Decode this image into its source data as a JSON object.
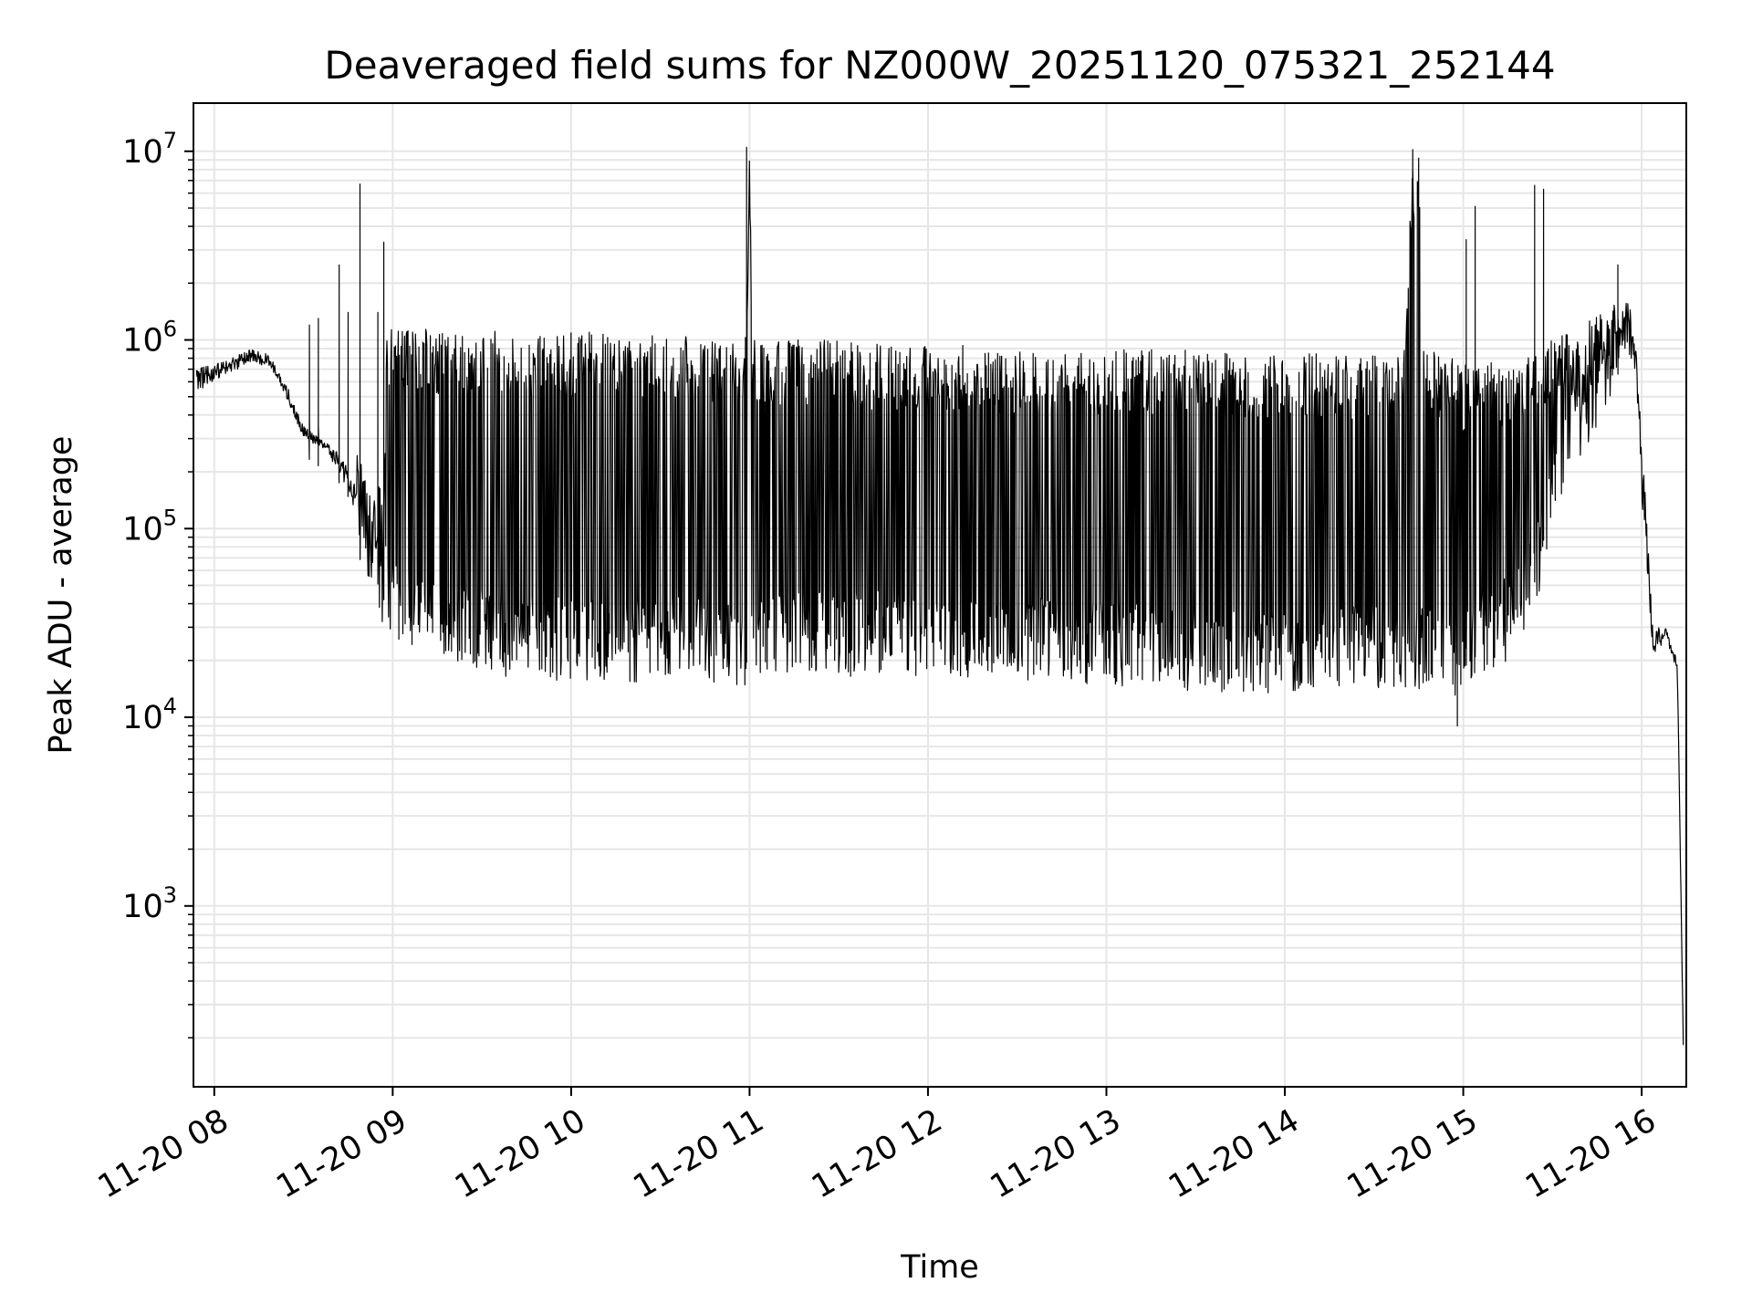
{
  "chart_data": {
    "type": "line",
    "title": "Deaveraged field sums for NZ000W_20251120_075321_252144",
    "xlabel": "Time",
    "ylabel": "Peak ADU - average",
    "yscale": "log",
    "xlim": [
      "2025-11-20T07:53:00",
      "2025-11-20T16:15:00"
    ],
    "ylim": [
      110,
      18000000
    ],
    "grid": true,
    "line_color": "#000000",
    "grid_color": "#e6e6e6",
    "x_ticks": [
      {
        "value": "2025-11-20T08:00:00",
        "label": "11-20 08"
      },
      {
        "value": "2025-11-20T09:00:00",
        "label": "11-20 09"
      },
      {
        "value": "2025-11-20T10:00:00",
        "label": "11-20 10"
      },
      {
        "value": "2025-11-20T11:00:00",
        "label": "11-20 11"
      },
      {
        "value": "2025-11-20T12:00:00",
        "label": "11-20 12"
      },
      {
        "value": "2025-11-20T13:00:00",
        "label": "11-20 13"
      },
      {
        "value": "2025-11-20T14:00:00",
        "label": "11-20 14"
      },
      {
        "value": "2025-11-20T15:00:00",
        "label": "11-20 15"
      },
      {
        "value": "2025-11-20T16:00:00",
        "label": "11-20 16"
      }
    ],
    "y_ticks": [
      {
        "value": 1000,
        "base": "10",
        "exp": "3"
      },
      {
        "value": 10000,
        "base": "10",
        "exp": "4"
      },
      {
        "value": 100000,
        "base": "10",
        "exp": "5"
      },
      {
        "value": 1000000,
        "base": "10",
        "exp": "6"
      },
      {
        "value": 10000000,
        "base": "10",
        "exp": "7"
      }
    ],
    "series": [
      {
        "x": [
          "2025-11-20T07:54:00",
          "2025-11-20T08:00:00",
          "2025-11-20T08:06:00",
          "2025-11-20T08:12:00",
          "2025-11-20T08:18:00",
          "2025-11-20T08:24:00",
          "2025-11-20T08:30:00",
          "2025-11-20T08:36:00",
          "2025-11-20T08:42:00",
          "2025-11-20T08:46:00",
          "2025-11-20T08:48:00",
          "2025-11-20T08:50:00",
          "2025-11-20T08:54:00",
          "2025-11-20T08:57:00",
          "2025-11-20T08:58:00",
          "2025-11-20T09:00:00",
          "2025-11-20T09:10:00",
          "2025-11-20T09:20:00",
          "2025-11-20T09:30:00",
          "2025-11-20T09:40:00",
          "2025-11-20T09:50:00",
          "2025-11-20T10:00:00",
          "2025-11-20T10:10:00",
          "2025-11-20T10:20:00",
          "2025-11-20T10:30:00",
          "2025-11-20T10:40:00",
          "2025-11-20T10:50:00",
          "2025-11-20T10:59:00",
          "2025-11-20T11:00:00",
          "2025-11-20T11:01:00",
          "2025-11-20T11:10:00",
          "2025-11-20T11:20:00",
          "2025-11-20T11:30:00",
          "2025-11-20T11:40:00",
          "2025-11-20T11:50:00",
          "2025-11-20T12:00:00",
          "2025-11-20T12:15:00",
          "2025-11-20T12:30:00",
          "2025-11-20T12:45:00",
          "2025-11-20T13:00:00",
          "2025-11-20T13:15:00",
          "2025-11-20T13:30:00",
          "2025-11-20T13:45:00",
          "2025-11-20T14:00:00",
          "2025-11-20T14:15:00",
          "2025-11-20T14:30:00",
          "2025-11-20T14:40:00",
          "2025-11-20T14:43:00",
          "2025-11-20T14:45:00",
          "2025-11-20T14:47:00",
          "2025-11-20T14:50:00",
          "2025-11-20T14:57:00",
          "2025-11-20T15:00:00",
          "2025-11-20T15:02:00",
          "2025-11-20T15:06:00",
          "2025-11-20T15:10:00",
          "2025-11-20T15:15:00",
          "2025-11-20T15:20:00",
          "2025-11-20T15:25:00",
          "2025-11-20T15:30:00",
          "2025-11-20T15:40:00",
          "2025-11-20T15:50:00",
          "2025-11-20T15:55:00",
          "2025-11-20T15:58:00",
          "2025-11-20T16:00:00",
          "2025-11-20T16:04:00",
          "2025-11-20T16:08:00",
          "2025-11-20T16:12:00",
          "2025-11-20T16:14:00"
        ],
        "upper": [
          700000,
          750000,
          800000,
          900000,
          850000,
          600000,
          350000,
          300000,
          250000,
          200000,
          300000,
          200000,
          150000,
          200000,
          1200000,
          1200000,
          1150000,
          1100000,
          1100000,
          1150000,
          1100000,
          1100000,
          1100000,
          1100000,
          1100000,
          1050000,
          1050000,
          1050000,
          10000000,
          1050000,
          1000000,
          1000000,
          1000000,
          950000,
          950000,
          950000,
          950000,
          900000,
          900000,
          900000,
          900000,
          900000,
          850000,
          850000,
          850000,
          850000,
          900000,
          10000000,
          9000000,
          900000,
          900000,
          800000,
          700000,
          900000,
          700000,
          800000,
          700000,
          800000,
          900000,
          1000000,
          1200000,
          1500000,
          1800000,
          1000000,
          300000,
          30000,
          30000,
          20000,
          200
        ],
        "lower": [
          450000,
          550000,
          600000,
          700000,
          650000,
          450000,
          280000,
          250000,
          180000,
          120000,
          60000,
          40000,
          40000,
          30000,
          30000,
          25000,
          22000,
          20000,
          18000,
          16000,
          16000,
          15000,
          15000,
          15000,
          16000,
          16000,
          15000,
          14000,
          14000,
          14000,
          17000,
          17000,
          16000,
          17000,
          16000,
          16000,
          15000,
          16000,
          15000,
          15000,
          14000,
          13000,
          13000,
          13000,
          14000,
          14000,
          14000,
          14000,
          14000,
          14000,
          14000,
          13000,
          13000,
          14000,
          16000,
          18000,
          20000,
          28000,
          40000,
          120000,
          250000,
          400000,
          600000,
          500000,
          100000,
          15000,
          25000,
          15000,
          150
        ],
        "spikes": [
          {
            "x": "2025-11-20T08:32:00",
            "y": 1200000
          },
          {
            "x": "2025-11-20T08:35:00",
            "y": 1300000
          },
          {
            "x": "2025-11-20T08:42:00",
            "y": 2500000
          },
          {
            "x": "2025-11-20T08:45:00",
            "y": 1400000
          },
          {
            "x": "2025-11-20T08:49:00",
            "y": 6700000
          },
          {
            "x": "2025-11-20T08:55:00",
            "y": 1400000
          },
          {
            "x": "2025-11-20T08:57:00",
            "y": 3300000
          },
          {
            "x": "2025-11-20T10:59:00",
            "y": 10500000
          },
          {
            "x": "2025-11-20T14:43:00",
            "y": 10200000
          },
          {
            "x": "2025-11-20T14:45:00",
            "y": 9200000
          },
          {
            "x": "2025-11-20T15:01:00",
            "y": 3400000
          },
          {
            "x": "2025-11-20T15:04:00",
            "y": 5100000
          },
          {
            "x": "2025-11-20T15:24:00",
            "y": 6600000
          },
          {
            "x": "2025-11-20T15:27:00",
            "y": 6300000
          },
          {
            "x": "2025-11-20T15:52:00",
            "y": 2500000
          },
          {
            "x": "2025-11-20T14:58:00",
            "y": 9000
          }
        ]
      }
    ]
  }
}
